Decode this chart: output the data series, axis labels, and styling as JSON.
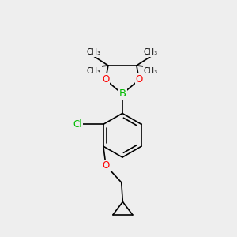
{
  "bg_color": "#eeeeee",
  "bond_color": "#000000",
  "bond_width": 1.2,
  "atom_colors": {
    "B": "#00bb00",
    "O": "#ff0000",
    "Cl": "#00bb00",
    "C": "#000000"
  },
  "font_size": 8.5,
  "fig_size": [
    3.0,
    3.0
  ],
  "xlim": [
    0.05,
    0.95
  ],
  "ylim": [
    0.05,
    0.95
  ]
}
